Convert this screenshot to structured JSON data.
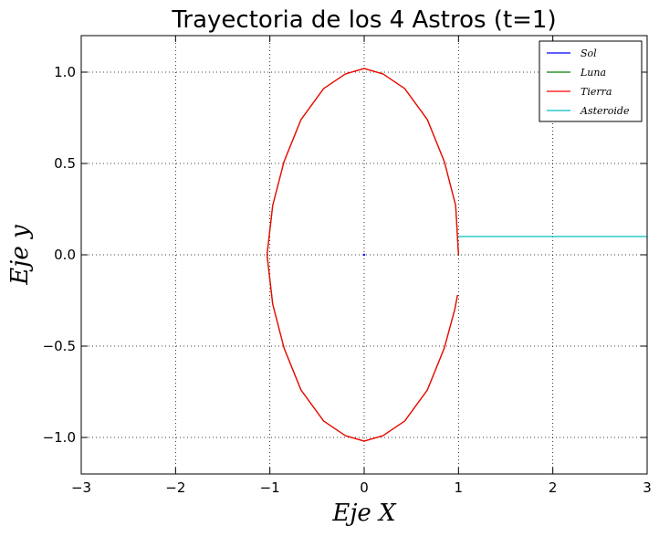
{
  "chart_data": {
    "type": "line",
    "title": "Trayectoria de los 4 Astros (t=1)",
    "xlabel": "Eje X",
    "ylabel": "Eje y",
    "xlim": [
      -3,
      3
    ],
    "ylim": [
      -1.2,
      1.2
    ],
    "xticks": [
      -3,
      -2,
      -1,
      0,
      1,
      2,
      3
    ],
    "xtick_labels": [
      "−3",
      "−2",
      "−1",
      "0",
      "1",
      "2",
      "3"
    ],
    "yticks": [
      -1.0,
      -0.5,
      0.0,
      0.5,
      1.0
    ],
    "ytick_labels": [
      "−1.0",
      "−0.5",
      "0.0",
      "0.5",
      "1.0"
    ],
    "grid": true,
    "legend_position": "top-right",
    "series": [
      {
        "name": "Sol",
        "color": "#0000ff",
        "points": [
          [
            0,
            0
          ]
        ]
      },
      {
        "name": "Luna",
        "color": "#008000",
        "points": [
          [
            1.0,
            0.0
          ],
          [
            0.97,
            0.27
          ],
          [
            0.85,
            0.51
          ],
          [
            0.67,
            0.74
          ],
          [
            0.43,
            0.91
          ],
          [
            0.2,
            0.99
          ],
          [
            0.0,
            1.02
          ],
          [
            -0.2,
            0.99
          ],
          [
            -0.43,
            0.91
          ],
          [
            -0.67,
            0.74
          ],
          [
            -0.85,
            0.51
          ],
          [
            -0.97,
            0.27
          ],
          [
            -1.03,
            0.0
          ],
          [
            -0.97,
            -0.27
          ],
          [
            -0.85,
            -0.51
          ],
          [
            -0.67,
            -0.74
          ],
          [
            -0.43,
            -0.91
          ],
          [
            -0.2,
            -0.99
          ],
          [
            0.0,
            -1.02
          ],
          [
            0.2,
            -0.99
          ],
          [
            0.43,
            -0.91
          ],
          [
            0.67,
            -0.74
          ],
          [
            0.85,
            -0.51
          ],
          [
            0.96,
            -0.3
          ],
          [
            0.99,
            -0.22
          ]
        ]
      },
      {
        "name": "Tierra",
        "color": "#ff0000",
        "points": [
          [
            1.0,
            0.0
          ],
          [
            0.97,
            0.27
          ],
          [
            0.85,
            0.51
          ],
          [
            0.67,
            0.74
          ],
          [
            0.43,
            0.91
          ],
          [
            0.2,
            0.99
          ],
          [
            0.0,
            1.02
          ],
          [
            -0.2,
            0.99
          ],
          [
            -0.43,
            0.91
          ],
          [
            -0.67,
            0.74
          ],
          [
            -0.85,
            0.51
          ],
          [
            -0.97,
            0.27
          ],
          [
            -1.03,
            0.0
          ],
          [
            -0.97,
            -0.27
          ],
          [
            -0.85,
            -0.51
          ],
          [
            -0.67,
            -0.74
          ],
          [
            -0.43,
            -0.91
          ],
          [
            -0.2,
            -0.99
          ],
          [
            0.0,
            -1.02
          ],
          [
            0.2,
            -0.99
          ],
          [
            0.43,
            -0.91
          ],
          [
            0.67,
            -0.74
          ],
          [
            0.85,
            -0.51
          ],
          [
            0.96,
            -0.3
          ],
          [
            0.99,
            -0.22
          ]
        ]
      },
      {
        "name": "Asteroide",
        "color": "#00bfbf",
        "points": [
          [
            1.0,
            0.1
          ],
          [
            3.0,
            0.1
          ]
        ]
      }
    ]
  }
}
